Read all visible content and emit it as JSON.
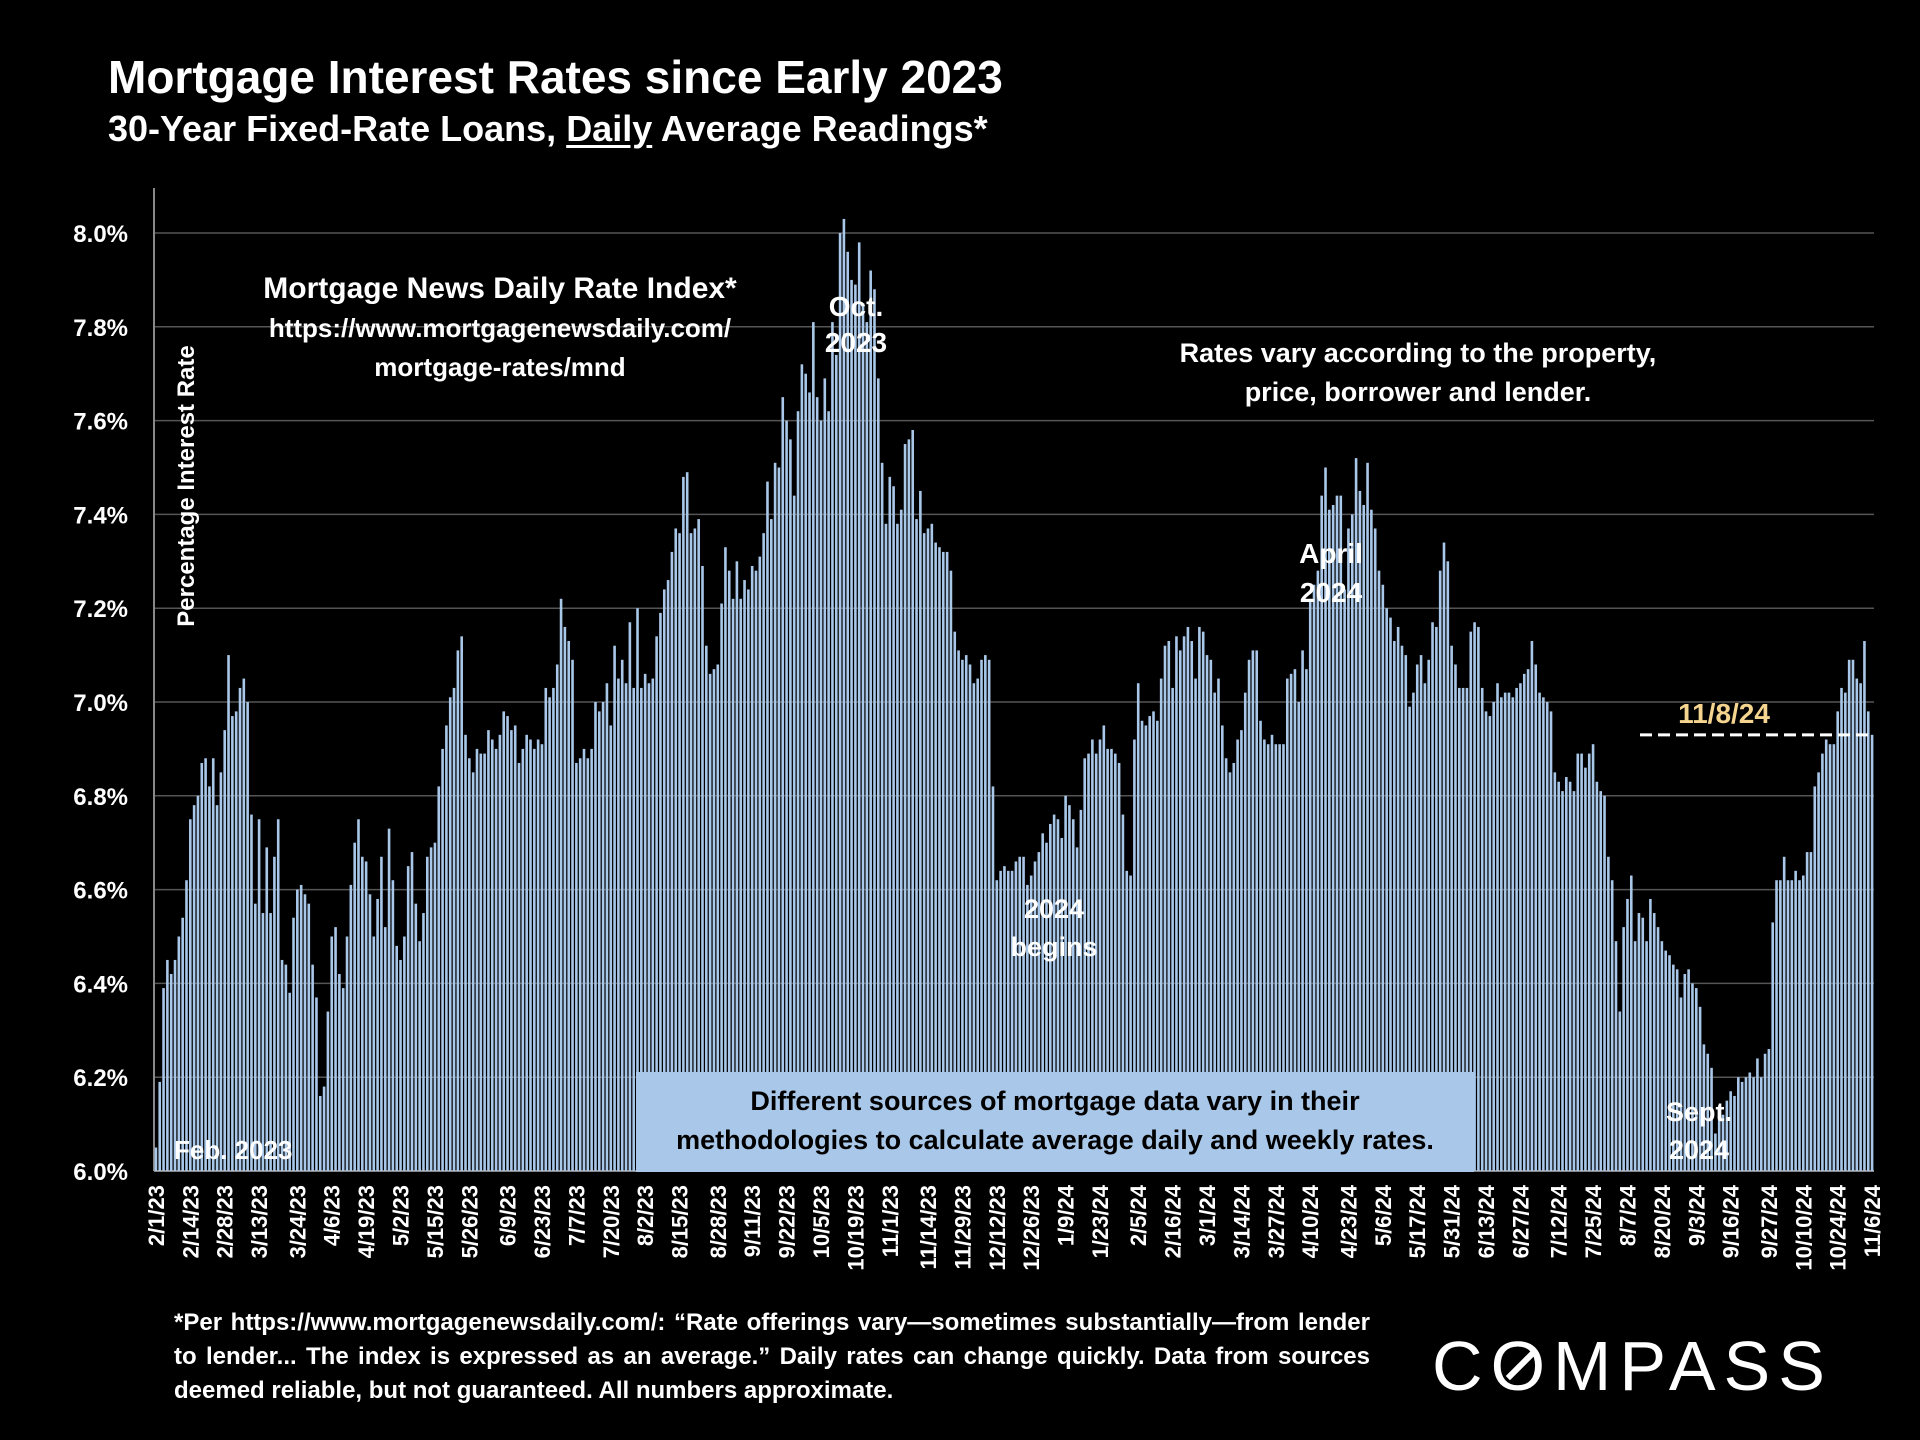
{
  "header": {
    "title": "Mortgage Interest Rates since Early 2023",
    "subtitle_pre": "30-Year Fixed-Rate Loans, ",
    "subtitle_underlined": "Daily",
    "subtitle_post": " Average Readings*"
  },
  "footnote": "*Per https://www.mortgagenewsdaily.com/: “Rate offerings vary—sometimes substantially—from lender to lender... The index is expressed as an average.” Daily rates can change quickly. Data from sources deemed reliable, but not guaranteed. All numbers approximate.",
  "logo": {
    "text_pre": "C",
    "text_o": "O",
    "text_post": "MPASS"
  },
  "colors": {
    "background": "#000000",
    "bar": "#a9c7e8",
    "grid": "#555555",
    "reference_line": "#ffffff",
    "reference_label": "#f5d48f",
    "text": "#ffffff",
    "note_box": "#a9c7e8",
    "note_text": "#000000"
  },
  "chart_data": {
    "type": "bar",
    "ylabel": "Percentage Interest  Rate",
    "ylim": [
      6.0,
      8.1
    ],
    "yticks": [
      "6.0%",
      "6.2%",
      "6.4%",
      "6.6%",
      "6.8%",
      "7.0%",
      "7.2%",
      "7.4%",
      "7.6%",
      "7.8%",
      "8.0%"
    ],
    "ytick_values": [
      6.0,
      6.2,
      6.4,
      6.6,
      6.8,
      7.0,
      7.2,
      7.4,
      7.6,
      7.8,
      8.0
    ],
    "grid": true,
    "xtick_labels": [
      "2/1/23",
      "2/14/23",
      "2/28/23",
      "3/13/23",
      "3/24/23",
      "4/6/23",
      "4/19/23",
      "5/2/23",
      "5/15/23",
      "5/26/23",
      "6/9/23",
      "6/23/23",
      "7/7/23",
      "7/20/23",
      "8/2/23",
      "8/15/23",
      "8/28/23",
      "9/11/23",
      "9/22/23",
      "10/5/23",
      "10/19/23",
      "11/1/23",
      "11/14/23",
      "11/29/23",
      "12/12/23",
      "12/26/23",
      "1/9/24",
      "1/23/24",
      "2/5/24",
      "2/16/24",
      "3/1/24",
      "3/14/24",
      "3/27/24",
      "4/10/24",
      "4/23/24",
      "5/6/24",
      "5/17/24",
      "5/31/24",
      "6/13/24",
      "6/27/24",
      "7/12/24",
      "7/25/24",
      "8/7/24",
      "8/20/24",
      "9/3/24",
      "9/16/24",
      "9/27/24",
      "10/10/24",
      "10/24/24",
      "11/6/24"
    ],
    "series": [
      {
        "values": [
          6.05,
          6.19,
          6.39,
          6.45,
          6.42,
          6.45,
          6.5,
          6.54,
          6.62,
          6.75,
          6.78,
          6.8,
          6.87,
          6.88,
          6.82,
          6.88,
          6.78,
          6.85,
          6.94,
          7.1,
          6.97,
          6.98,
          7.03,
          7.05,
          7.0,
          6.76,
          6.57,
          6.75,
          6.55,
          6.69,
          6.55,
          6.67,
          6.75,
          6.45,
          6.44,
          6.38,
          6.54,
          6.6,
          6.61,
          6.59,
          6.57,
          6.44,
          6.37,
          6.16,
          6.18,
          6.34,
          6.5,
          6.52,
          6.42,
          6.39,
          6.5,
          6.61,
          6.7,
          6.75,
          6.67,
          6.66,
          6.59,
          6.5,
          6.58,
          6.67,
          6.52,
          6.73,
          6.62,
          6.48,
          6.45,
          6.5,
          6.65,
          6.68,
          6.57,
          6.49,
          6.55,
          6.67,
          6.69,
          6.7,
          6.82,
          6.9,
          6.95,
          7.01,
          7.03,
          7.11,
          7.14,
          6.93,
          6.88,
          6.85,
          6.9,
          6.89,
          6.89,
          6.94,
          6.92,
          6.9,
          6.93,
          6.98,
          6.97,
          6.94,
          6.95,
          6.87,
          6.9,
          6.93,
          6.92,
          6.9,
          6.92,
          6.91,
          7.03,
          7.01,
          7.03,
          7.08,
          7.22,
          7.16,
          7.13,
          7.09,
          6.87,
          6.88,
          6.9,
          6.88,
          6.9,
          7.0,
          6.98,
          7.0,
          7.04,
          6.95,
          7.12,
          7.05,
          7.09,
          7.04,
          7.17,
          7.03,
          7.2,
          7.03,
          7.06,
          7.04,
          7.05,
          7.14,
          7.19,
          7.24,
          7.26,
          7.32,
          7.37,
          7.36,
          7.48,
          7.49,
          7.36,
          7.37,
          7.39,
          7.29,
          7.12,
          7.06,
          7.07,
          7.08,
          7.21,
          7.33,
          7.28,
          7.22,
          7.3,
          7.22,
          7.26,
          7.24,
          7.29,
          7.28,
          7.31,
          7.36,
          7.47,
          7.39,
          7.51,
          7.5,
          7.65,
          7.6,
          7.56,
          7.44,
          7.62,
          7.72,
          7.7,
          7.66,
          7.81,
          7.65,
          7.6,
          7.69,
          7.62,
          7.81,
          7.74,
          8.0,
          8.03,
          7.96,
          7.9,
          7.89,
          7.98,
          7.85,
          7.81,
          7.92,
          7.88,
          7.69,
          7.51,
          7.38,
          7.48,
          7.46,
          7.38,
          7.41,
          7.55,
          7.56,
          7.58,
          7.39,
          7.45,
          7.36,
          7.37,
          7.38,
          7.34,
          7.33,
          7.32,
          7.32,
          7.28,
          7.15,
          7.11,
          7.09,
          7.1,
          7.08,
          7.04,
          7.05,
          7.09,
          7.1,
          7.09,
          6.82,
          6.62,
          6.64,
          6.65,
          6.64,
          6.64,
          6.66,
          6.67,
          6.67,
          6.61,
          6.63,
          6.66,
          6.68,
          6.72,
          6.7,
          6.74,
          6.76,
          6.75,
          6.71,
          6.8,
          6.78,
          6.75,
          6.69,
          6.77,
          6.88,
          6.89,
          6.92,
          6.89,
          6.92,
          6.95,
          6.9,
          6.9,
          6.89,
          6.87,
          6.76,
          6.64,
          6.63,
          6.92,
          7.04,
          6.96,
          6.95,
          6.97,
          6.98,
          6.96,
          7.05,
          7.12,
          7.13,
          7.03,
          7.14,
          7.11,
          7.14,
          7.16,
          7.13,
          7.05,
          7.16,
          7.15,
          7.1,
          7.09,
          7.02,
          7.05,
          6.95,
          6.88,
          6.85,
          6.87,
          6.92,
          6.94,
          7.02,
          7.09,
          7.11,
          7.11,
          6.96,
          6.92,
          6.91,
          6.93,
          6.91,
          6.91,
          6.91,
          7.05,
          7.06,
          7.07,
          7.0,
          7.11,
          7.07,
          7.22,
          7.25,
          7.28,
          7.44,
          7.5,
          7.41,
          7.42,
          7.44,
          7.44,
          7.24,
          7.37,
          7.4,
          7.52,
          7.45,
          7.42,
          7.51,
          7.41,
          7.37,
          7.28,
          7.25,
          7.2,
          7.18,
          7.13,
          7.16,
          7.12,
          7.1,
          6.99,
          7.02,
          7.08,
          7.1,
          7.04,
          7.09,
          7.17,
          7.16,
          7.28,
          7.34,
          7.3,
          7.12,
          7.08,
          7.03,
          7.03,
          7.03,
          7.15,
          7.17,
          7.16,
          7.03,
          6.98,
          6.97,
          7.0,
          7.04,
          7.01,
          7.02,
          7.02,
          7.01,
          7.03,
          7.04,
          7.06,
          7.07,
          7.13,
          7.08,
          7.02,
          7.01,
          7.0,
          6.98,
          6.85,
          6.83,
          6.81,
          6.84,
          6.83,
          6.81,
          6.89,
          6.89,
          6.86,
          6.89,
          6.91,
          6.83,
          6.81,
          6.8,
          6.67,
          6.62,
          6.49,
          6.34,
          6.52,
          6.58,
          6.63,
          6.49,
          6.55,
          6.54,
          6.49,
          6.58,
          6.55,
          6.52,
          6.49,
          6.47,
          6.46,
          6.44,
          6.43,
          6.37,
          6.42,
          6.43,
          6.4,
          6.39,
          6.35,
          6.27,
          6.25,
          6.22,
          6.08,
          6.11,
          6.12,
          6.15,
          6.17,
          6.16,
          6.2,
          6.19,
          6.2,
          6.21,
          6.2,
          6.24,
          6.2,
          6.25,
          6.26,
          6.53,
          6.62,
          6.62,
          6.67,
          6.62,
          6.62,
          6.64,
          6.62,
          6.63,
          6.68,
          6.68,
          6.82,
          6.85,
          6.89,
          6.92,
          6.91,
          6.91,
          6.98,
          7.03,
          7.02,
          7.09,
          7.09,
          7.05,
          7.04,
          7.13,
          6.98,
          6.93
        ]
      }
    ],
    "reference_line": {
      "label": "11/8/24",
      "value": 6.93
    },
    "annotations": {
      "source_title": "Mortgage News Daily Rate Index*",
      "source_url_1": "https://www.mortgagenewsdaily.com/",
      "source_url_2": "mortgage-rates/mnd",
      "oct_1": "Oct.",
      "oct_2": "2023",
      "vary_1": "Rates vary according to the property,",
      "vary_2": "price, borrower and lender.",
      "april_1": "April",
      "april_2": "2024",
      "begins_1": "2024",
      "begins_2": "begins",
      "feb": "Feb. 2023",
      "sept_1": "Sept.",
      "sept_2": "2024",
      "box_1": "Different sources of mortgage data vary in their",
      "box_2": "methodologies to calculate average daily and weekly rates."
    }
  }
}
